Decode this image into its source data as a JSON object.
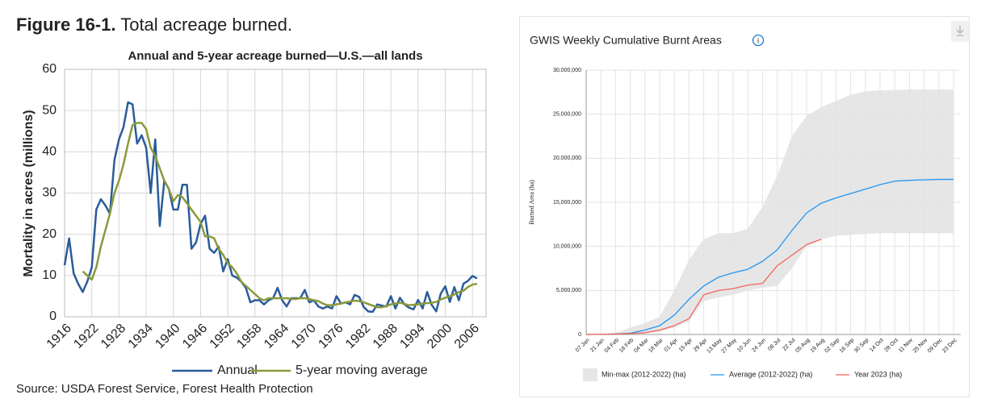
{
  "chart_data": [
    {
      "type": "line",
      "figure_label": "Figure 16-1.",
      "caption": "Total acreage burned.",
      "title": "Annual and 5-year acreage burned—U.S.—all lands",
      "ylabel": "Mortality in acres (millions)",
      "source": "Source: USDA Forest Service, Forest Health Protection",
      "x": [
        1916,
        1917,
        1918,
        1919,
        1920,
        1921,
        1922,
        1923,
        1924,
        1925,
        1926,
        1927,
        1928,
        1929,
        1930,
        1931,
        1932,
        1933,
        1934,
        1935,
        1936,
        1937,
        1938,
        1939,
        1940,
        1941,
        1942,
        1943,
        1944,
        1945,
        1946,
        1947,
        1948,
        1949,
        1950,
        1951,
        1952,
        1953,
        1954,
        1955,
        1956,
        1957,
        1958,
        1959,
        1960,
        1961,
        1962,
        1963,
        1964,
        1965,
        1966,
        1967,
        1968,
        1969,
        1970,
        1971,
        1972,
        1973,
        1974,
        1975,
        1976,
        1977,
        1978,
        1979,
        1980,
        1981,
        1982,
        1983,
        1984,
        1985,
        1986,
        1987,
        1988,
        1989,
        1990,
        1991,
        1992,
        1993,
        1994,
        1995,
        1996,
        1997,
        1998,
        1999,
        2000,
        2001,
        2002,
        2003,
        2004,
        2005,
        2006,
        2007
      ],
      "series": [
        {
          "name": "Annual",
          "color": "#2a5c9a",
          "values": [
            12.5,
            19,
            10.5,
            8,
            6,
            8.5,
            12,
            26,
            28.5,
            27,
            25,
            38,
            43,
            46,
            52,
            51.5,
            42,
            44,
            41,
            30,
            43,
            22,
            33,
            31,
            26,
            26,
            32,
            32,
            16.5,
            18,
            22.5,
            24.5,
            16.5,
            15.5,
            17,
            11,
            14,
            10,
            9.5,
            8.5,
            7,
            3.5,
            4,
            4,
            3,
            4,
            4.5,
            7,
            4,
            2.5,
            4.5,
            4.5,
            4.5,
            6.5,
            3.5,
            4,
            2.5,
            2,
            2.5,
            2,
            5,
            3.2,
            3.5,
            3,
            5.3,
            4.8,
            2.4,
            1.3,
            1.2,
            3,
            2.7,
            2.5,
            5,
            2,
            4.6,
            3,
            2.2,
            1.8,
            4.1,
            2,
            6,
            2.9,
            1.3,
            5.6,
            7.4,
            3.6,
            7.2,
            4,
            8,
            8.7,
            9.9,
            9.3
          ]
        },
        {
          "name": "5-year moving average",
          "color": "#8a9a3a",
          "values": [
            null,
            null,
            null,
            null,
            11,
            10,
            9,
            12,
            17,
            21,
            25,
            30,
            33,
            37,
            42,
            46.5,
            47,
            47,
            45.5,
            41,
            39,
            36,
            33,
            31,
            28,
            29.5,
            29,
            27.5,
            26,
            24.5,
            23,
            19.5,
            19.5,
            19,
            16.5,
            15,
            13,
            12,
            10.5,
            8.5,
            7.5,
            6.5,
            5.5,
            4.5,
            4,
            4.5,
            4.5,
            4.5,
            4.5,
            4.5,
            4.3,
            4.3,
            4.5,
            4.5,
            4.3,
            4,
            3.8,
            3.2,
            2.8,
            2.8,
            3,
            3.2,
            3.5,
            3.7,
            3.9,
            3.8,
            3.5,
            3.1,
            2.7,
            2.3,
            2.3,
            2.6,
            3,
            3.2,
            3.4,
            3.1,
            2.8,
            2.9,
            3,
            3.2,
            3.3,
            3.4,
            3.6,
            4.2,
            4.6,
            5,
            5.4,
            6,
            6.3,
            7.2,
            7.8,
            8
          ]
        }
      ],
      "xlim": [
        1916,
        2009
      ],
      "xticks": [
        1916,
        1922,
        1928,
        1934,
        1940,
        1946,
        1952,
        1958,
        1964,
        1970,
        1976,
        1982,
        1988,
        1994,
        2000,
        2006
      ],
      "ylim": [
        0,
        60
      ],
      "yticks": [
        0,
        10,
        20,
        30,
        40,
        50,
        60
      ],
      "grid": true,
      "legend": "bottom"
    },
    {
      "type": "line",
      "title": "GWIS Weekly Cumulative Burnt Areas",
      "ylabel": "Burned Area (ha)",
      "categories": [
        "07 Jan",
        "21 Jan",
        "04 Feb",
        "18 Feb",
        "04 Mar",
        "18 Mar",
        "01 Apr",
        "15 Apr",
        "29 Apr",
        "13 May",
        "27 May",
        "10 Jun",
        "24 Jun",
        "08 Jul",
        "22 Jul",
        "05 Aug",
        "19 Aug",
        "02 Sep",
        "16 Sep",
        "30 Sep",
        "14 Oct",
        "28 Oct",
        "11 Nov",
        "25 Nov",
        "09 Dec",
        "23 Dec"
      ],
      "series": [
        {
          "name": "Min-max (2012-2022) (ha)",
          "color": "#e6e6e6",
          "values": [
            0,
            50000,
            200000,
            800000,
            1300000,
            2000000,
            5000000,
            8500000,
            10800000,
            11500000,
            11500000,
            12000000,
            14500000,
            18000000,
            22500000,
            24800000,
            25800000,
            26500000,
            27200000,
            27600000,
            27700000,
            27750000,
            27800000,
            27800000,
            27800000,
            27800000
          ],
          "lower": [
            0,
            0,
            0,
            20000,
            100000,
            300000,
            800000,
            1500000,
            3800000,
            4200000,
            4500000,
            5000000,
            5300000,
            5500000,
            7500000,
            10000000,
            10800000,
            11200000,
            11300000,
            11400000,
            11500000,
            11500000,
            11500000,
            11500000,
            11500000,
            11500000
          ]
        },
        {
          "name": "Average (2012-2022) (ha)",
          "color": "#2196f3",
          "values": [
            0,
            20000,
            50000,
            150000,
            500000,
            1000000,
            2200000,
            4000000,
            5500000,
            6500000,
            7000000,
            7400000,
            8300000,
            9600000,
            11800000,
            13800000,
            14900000,
            15500000,
            16000000,
            16500000,
            17000000,
            17400000,
            17500000,
            17550000,
            17600000,
            17600000
          ]
        },
        {
          "name": "Year 2023 (ha)",
          "color": "#f4665a",
          "values": [
            0,
            20000,
            50000,
            100000,
            200000,
            500000,
            1000000,
            1800000,
            4500000,
            5000000,
            5200000,
            5600000,
            5800000,
            7800000,
            9000000,
            10200000,
            10800000,
            null,
            null,
            null,
            null,
            null,
            null,
            null,
            null,
            null
          ]
        }
      ],
      "ylim": [
        0,
        30000000
      ],
      "yticks": [
        0,
        {
          "value": 5000000,
          "label": "5,000,000"
        },
        {
          "value": 10000000,
          "label": "10,000,000"
        },
        {
          "value": 15000000,
          "label": "15,000,000"
        },
        {
          "value": 20000000,
          "label": "20,000,000"
        },
        {
          "value": 25000000,
          "label": "25,000,000"
        },
        {
          "value": 30000000,
          "label": "30,000,000"
        }
      ],
      "grid": true,
      "legend": "bottom"
    }
  ]
}
